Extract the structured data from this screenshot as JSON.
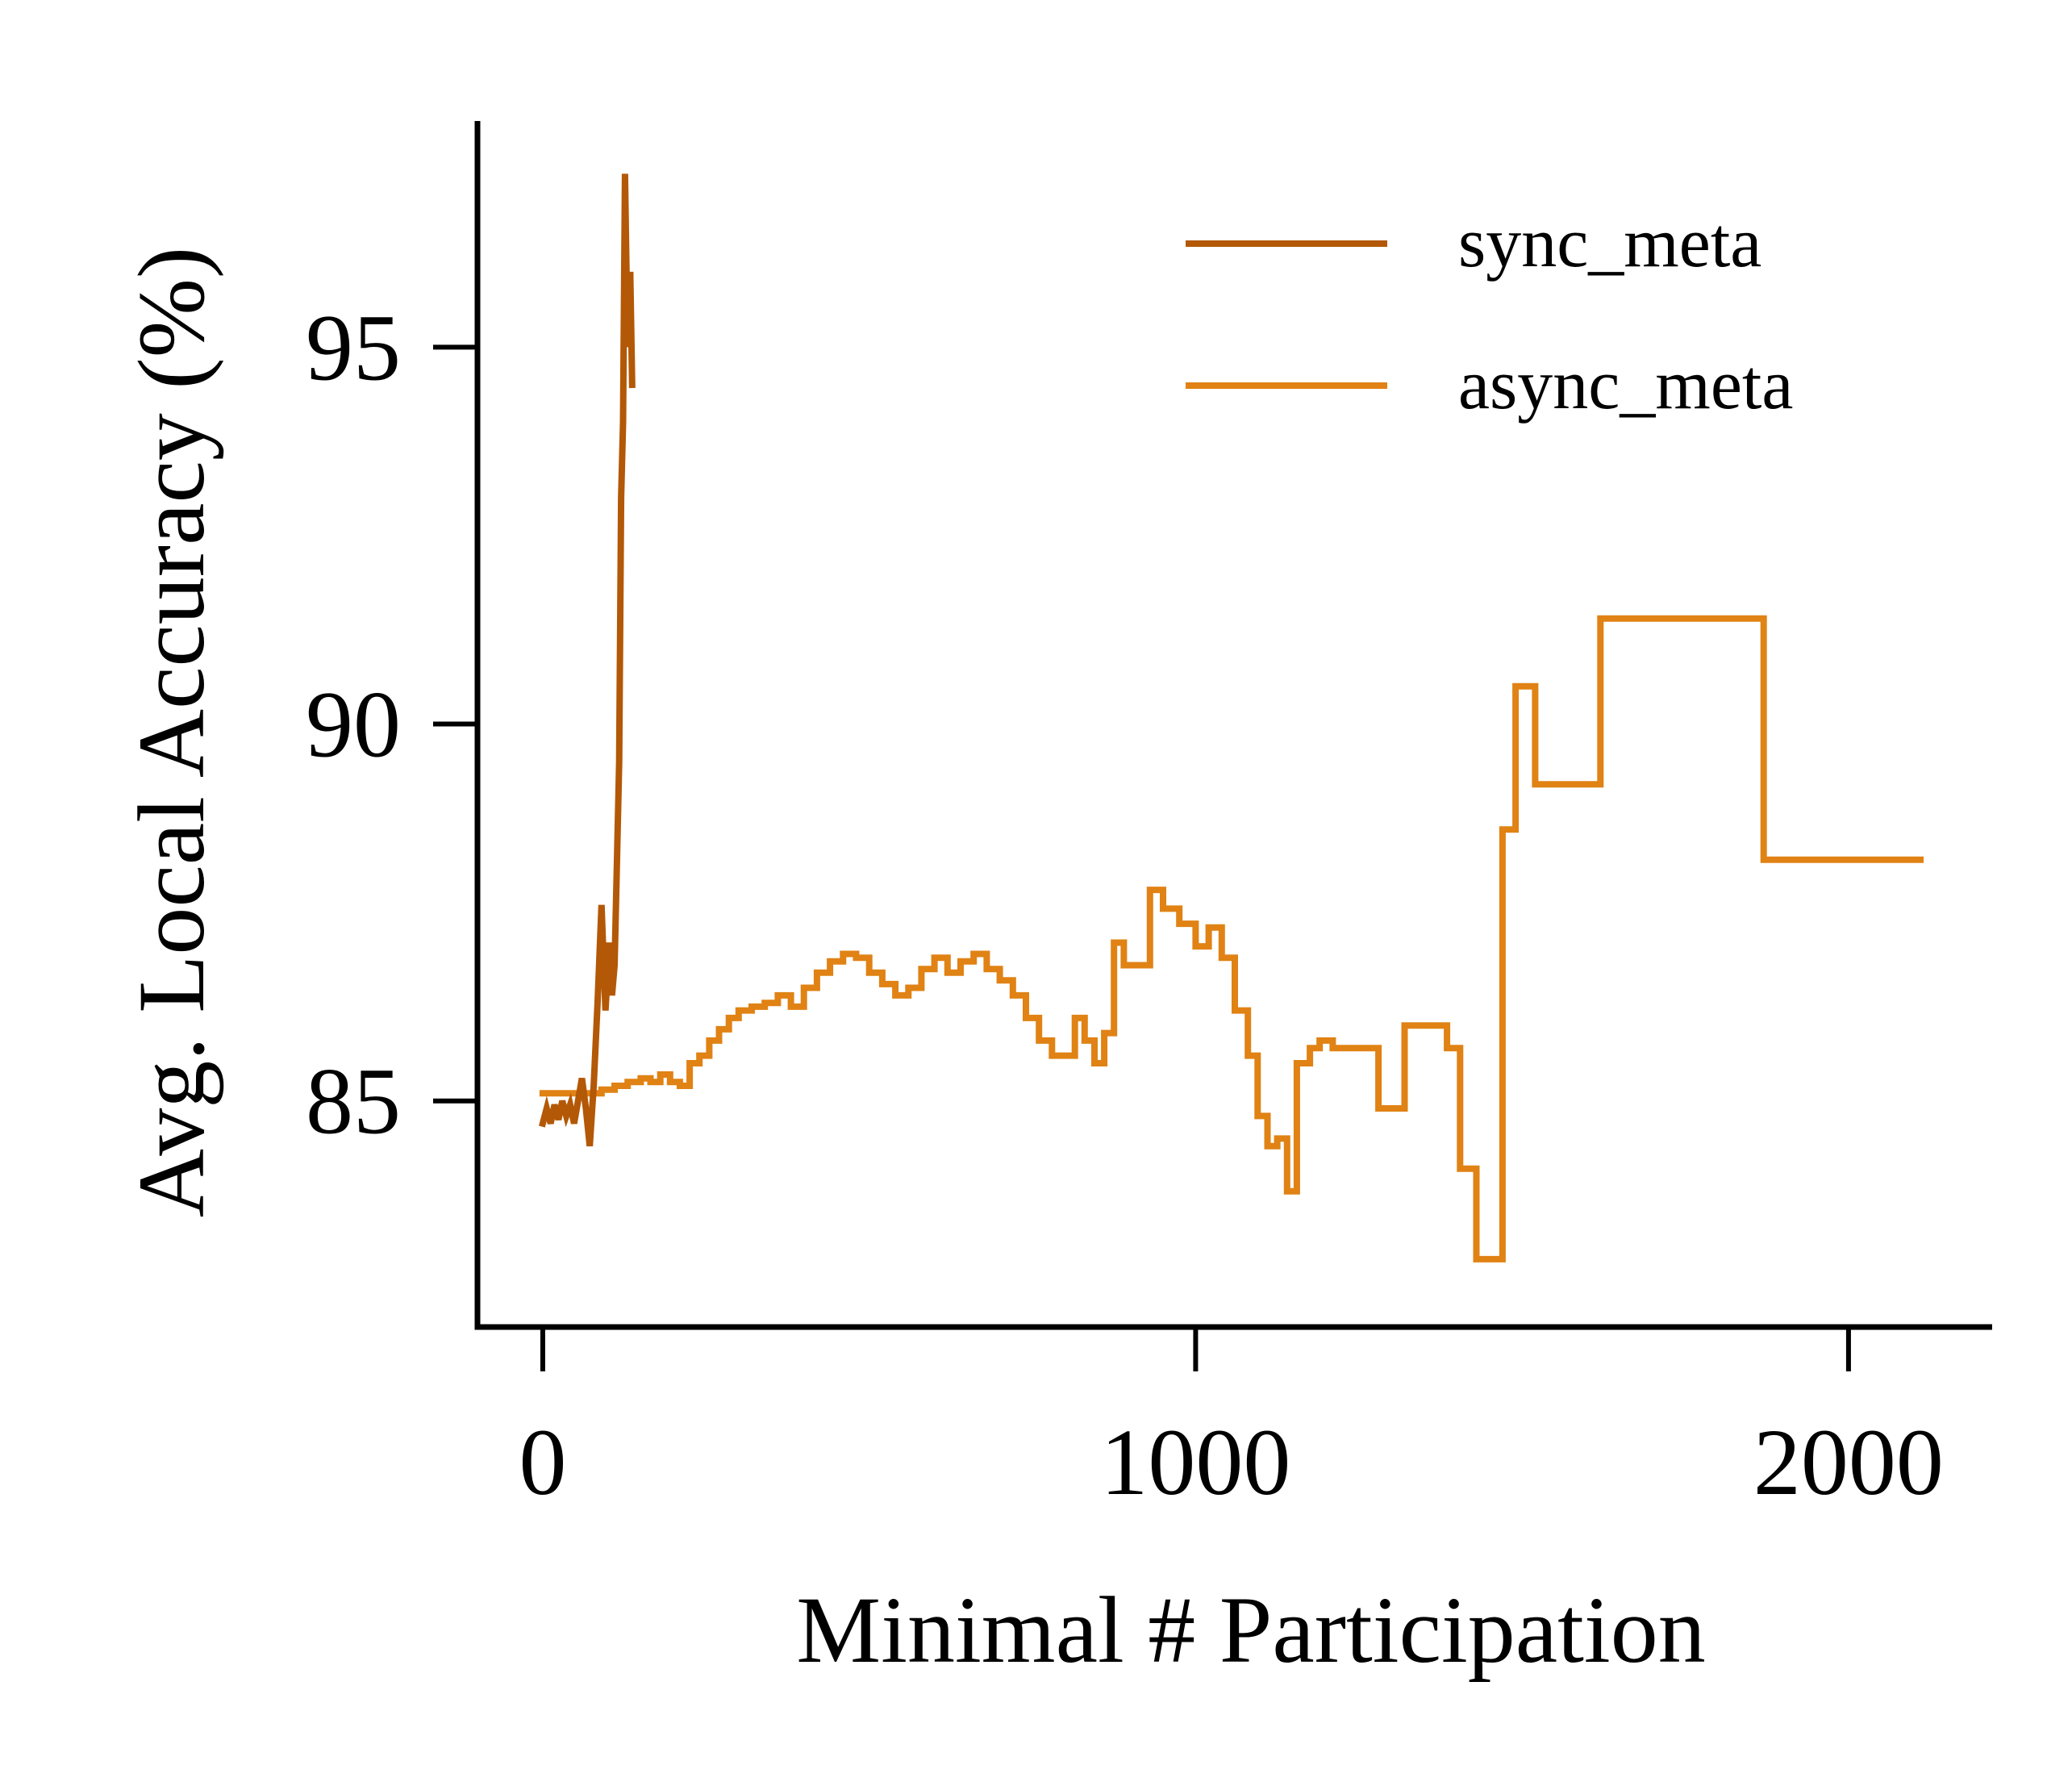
{
  "chart_data": {
    "type": "line",
    "title": "",
    "xlabel": "Minimal # Participation",
    "ylabel": "Avg. Local Accuracy (%)",
    "xlim": [
      -100,
      2220
    ],
    "ylim": [
      82.0,
      98.0
    ],
    "xticks": [
      0,
      1000,
      2000
    ],
    "yticks": [
      85,
      90,
      95
    ],
    "grid": false,
    "legend": "top-right",
    "series": [
      {
        "name": "sync_meta",
        "color": "#b35806",
        "step": false,
        "points": [
          [
            0,
            84.7
          ],
          [
            6,
            84.9
          ],
          [
            12,
            84.7
          ],
          [
            18,
            84.95
          ],
          [
            24,
            84.75
          ],
          [
            30,
            85.0
          ],
          [
            36,
            84.8
          ],
          [
            42,
            84.95
          ],
          [
            48,
            84.7
          ],
          [
            54,
            85.0
          ],
          [
            60,
            85.3
          ],
          [
            66,
            84.9
          ],
          [
            72,
            84.4
          ],
          [
            78,
            85.2
          ],
          [
            84,
            86.3
          ],
          [
            90,
            87.6
          ],
          [
            96,
            86.2
          ],
          [
            102,
            87.1
          ],
          [
            106,
            86.4
          ],
          [
            110,
            86.8
          ],
          [
            114,
            88.3
          ],
          [
            117,
            89.5
          ],
          [
            120,
            93.0
          ],
          [
            123,
            94.0
          ],
          [
            126,
            97.3
          ],
          [
            130,
            95.0
          ],
          [
            134,
            96.0
          ],
          [
            137,
            94.5
          ]
        ]
      },
      {
        "name": "async_meta",
        "color": "#e08214",
        "step": true,
        "points": [
          [
            0,
            85.1
          ],
          [
            90,
            85.15
          ],
          [
            110,
            85.2
          ],
          [
            130,
            85.25
          ],
          [
            150,
            85.3
          ],
          [
            165,
            85.25
          ],
          [
            180,
            85.35
          ],
          [
            195,
            85.25
          ],
          [
            210,
            85.2
          ],
          [
            225,
            85.5
          ],
          [
            240,
            85.6
          ],
          [
            255,
            85.8
          ],
          [
            270,
            85.95
          ],
          [
            285,
            86.1
          ],
          [
            300,
            86.2
          ],
          [
            320,
            86.25
          ],
          [
            340,
            86.3
          ],
          [
            360,
            86.4
          ],
          [
            380,
            86.25
          ],
          [
            400,
            86.5
          ],
          [
            420,
            86.7
          ],
          [
            440,
            86.85
          ],
          [
            460,
            86.95
          ],
          [
            480,
            86.9
          ],
          [
            500,
            86.7
          ],
          [
            520,
            86.55
          ],
          [
            540,
            86.4
          ],
          [
            560,
            86.5
          ],
          [
            580,
            86.75
          ],
          [
            600,
            86.9
          ],
          [
            620,
            86.7
          ],
          [
            640,
            86.85
          ],
          [
            660,
            86.95
          ],
          [
            680,
            86.75
          ],
          [
            700,
            86.6
          ],
          [
            720,
            86.4
          ],
          [
            740,
            86.1
          ],
          [
            760,
            85.8
          ],
          [
            780,
            85.6
          ],
          [
            800,
            85.6
          ],
          [
            815,
            86.1
          ],
          [
            830,
            85.8
          ],
          [
            845,
            85.5
          ],
          [
            860,
            85.9
          ],
          [
            875,
            87.1
          ],
          [
            890,
            86.8
          ],
          [
            910,
            86.8
          ],
          [
            930,
            87.8
          ],
          [
            950,
            87.55
          ],
          [
            975,
            87.35
          ],
          [
            1000,
            87.05
          ],
          [
            1020,
            87.3
          ],
          [
            1040,
            86.9
          ],
          [
            1060,
            86.2
          ],
          [
            1080,
            85.6
          ],
          [
            1095,
            84.8
          ],
          [
            1110,
            84.4
          ],
          [
            1125,
            84.5
          ],
          [
            1140,
            83.8
          ],
          [
            1155,
            85.5
          ],
          [
            1175,
            85.7
          ],
          [
            1190,
            85.8
          ],
          [
            1210,
            85.7
          ],
          [
            1240,
            85.7
          ],
          [
            1260,
            85.7
          ],
          [
            1280,
            84.9
          ],
          [
            1300,
            84.9
          ],
          [
            1320,
            86.0
          ],
          [
            1345,
            86.0
          ],
          [
            1365,
            86.0
          ],
          [
            1385,
            85.7
          ],
          [
            1405,
            84.1
          ],
          [
            1430,
            82.9
          ],
          [
            1455,
            82.9
          ],
          [
            1470,
            88.6
          ],
          [
            1490,
            90.5
          ],
          [
            1520,
            89.2
          ],
          [
            1580,
            89.2
          ],
          [
            1620,
            91.4
          ],
          [
            1700,
            91.4
          ],
          [
            1820,
            91.4
          ],
          [
            1870,
            88.2
          ],
          [
            2000,
            88.2
          ],
          [
            2110,
            88.2
          ]
        ]
      }
    ]
  }
}
